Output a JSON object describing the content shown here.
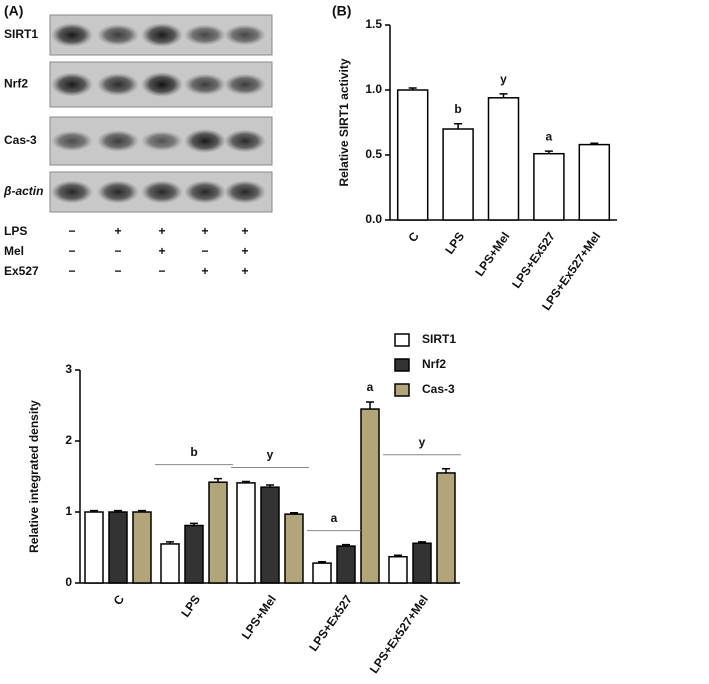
{
  "blot": {
    "label": "(A)",
    "rows": [
      "SIRT1",
      "Nrf2",
      "Cas-3",
      "β-actin"
    ],
    "treatments": [
      {
        "name": "LPS",
        "marks": [
          "−",
          "+",
          "+",
          "+",
          "+"
        ]
      },
      {
        "name": "Mel",
        "marks": [
          "−",
          "−",
          "+",
          "−",
          "+"
        ]
      },
      {
        "name": "Ex527",
        "marks": [
          "−",
          "−",
          "−",
          "+",
          "+"
        ]
      }
    ]
  },
  "chart_data": [
    {
      "type": "bar",
      "title": "(B)",
      "y_label": "Relative SIRT1 activity",
      "categories": [
        "C",
        "LPS",
        "LPS+Mel",
        "LPS+Ex527",
        "LPS+Ex527+Mel"
      ],
      "values": [
        1.0,
        0.7,
        0.94,
        0.51,
        0.58
      ],
      "errors": [
        0.015,
        0.04,
        0.03,
        0.02,
        0.01
      ],
      "annotations": [
        null,
        "b",
        "y",
        "a",
        null
      ],
      "color": "#ffffff",
      "ylim": [
        0,
        1.5
      ],
      "yticks": [
        {
          "value": 0,
          "label": "0.0"
        },
        0.5,
        {
          "value": 1,
          "label": "1.0"
        },
        1.5
      ]
    },
    {
      "type": "grouped_bar",
      "y_label": "Relative integrated density",
      "categories": [
        "C",
        "LPS",
        "LPS+Mel",
        "LPS+Ex527",
        "LPS+Ex527+Mel"
      ],
      "series": [
        {
          "name": "SIRT1",
          "color": "#ffffff",
          "values": [
            1.0,
            0.55,
            1.41,
            0.28,
            0.37
          ],
          "errors": [
            0.02,
            0.03,
            0.02,
            0.02,
            0.02
          ],
          "annotations": [
            null,
            null,
            null,
            null,
            null
          ]
        },
        {
          "name": "Nrf2",
          "color": "#333333",
          "values": [
            1.0,
            0.81,
            1.35,
            0.52,
            0.56
          ],
          "errors": [
            0.02,
            0.03,
            0.03,
            0.02,
            0.02
          ],
          "annotations": [
            null,
            null,
            null,
            null,
            null
          ]
        },
        {
          "name": "Cas-3",
          "color": "#b3a57a",
          "values": [
            1.0,
            1.42,
            0.97,
            2.45,
            1.55
          ],
          "errors": [
            0.02,
            0.05,
            0.02,
            0.1,
            0.06
          ],
          "annotations": [
            null,
            null,
            null,
            "a",
            null
          ]
        }
      ],
      "group_annotations": [
        null,
        "b",
        "y",
        "a",
        "y"
      ],
      "ylim": [
        0,
        3
      ],
      "yticks": [
        0,
        1,
        2,
        3
      ],
      "legend": "top-right"
    }
  ]
}
